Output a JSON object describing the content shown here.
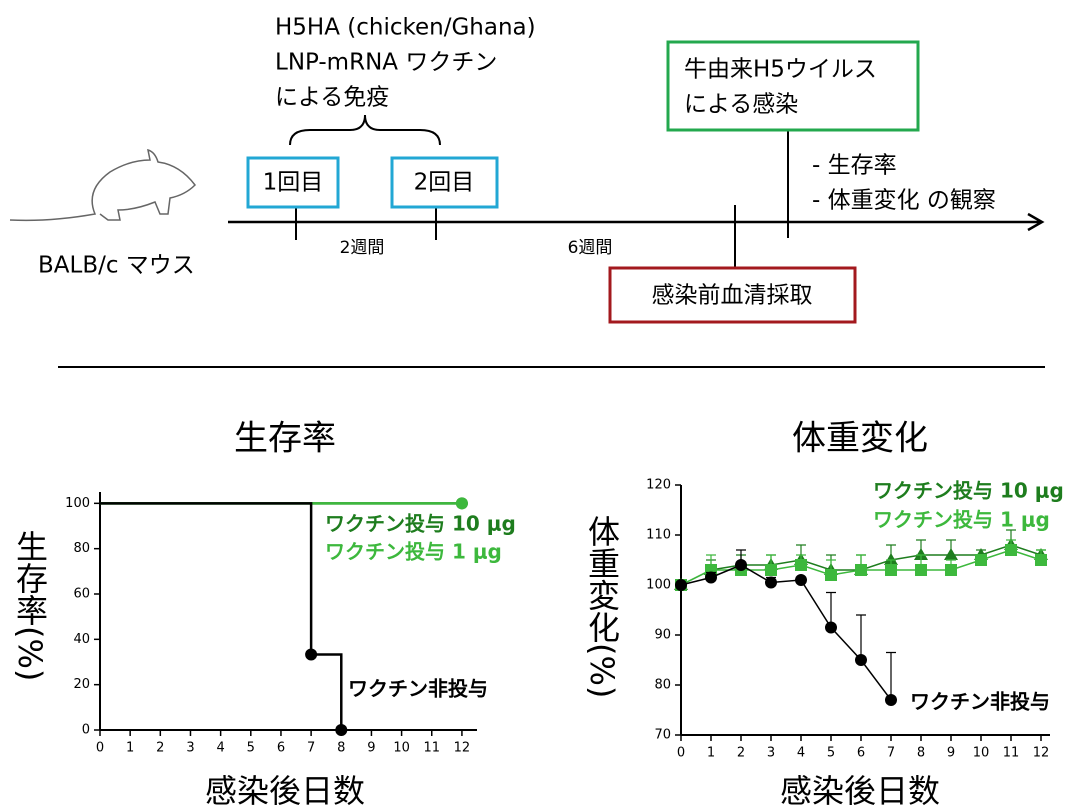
{
  "diagram": {
    "vaccine": [
      "H5HA (chicken/Ghana)",
      "LNP-mRNA ワクチン",
      "による免疫"
    ],
    "dose1": "1回目",
    "dose2": "2回目",
    "infection": [
      "牛由来H5ウイルス",
      "による感染"
    ],
    "observation": [
      "- 生存率",
      "- 体重変化 の観察"
    ],
    "mouse": "BALB/c マウス",
    "interval1": "2週間",
    "interval2": "6週間",
    "serum": "感染前血清採取"
  },
  "chart_data": [
    {
      "type": "step",
      "title": "生存率",
      "x_label": "感染後日数",
      "y_label": "生存率(%)",
      "xlim": [
        0,
        12.5
      ],
      "xticks": [
        0,
        1,
        2,
        3,
        4,
        5,
        6,
        7,
        8,
        9,
        10,
        11,
        12
      ],
      "ylim": [
        0,
        105
      ],
      "yticks": [
        0,
        20,
        40,
        60,
        80,
        100
      ],
      "series": [
        {
          "name": "ワクチン投与 10 μg",
          "color": "#1e7d1e",
          "marker": "circle",
          "x": [
            0,
            12
          ],
          "values": [
            100,
            100
          ]
        },
        {
          "name": "ワクチン投与 1 μg",
          "color": "#3db83d",
          "marker": "circle",
          "x": [
            0,
            12
          ],
          "values": [
            100,
            100
          ]
        },
        {
          "name": "ワクチン非投与",
          "color": "#000000",
          "marker": "circle",
          "x": [
            0,
            7,
            8
          ],
          "values": [
            100,
            33.3,
            0
          ]
        }
      ]
    },
    {
      "type": "line",
      "title": "体重変化",
      "x_label": "感染後日数",
      "y_label": "体重変化(%)",
      "xlim": [
        0,
        12.3
      ],
      "xticks": [
        0,
        1,
        2,
        3,
        4,
        5,
        6,
        7,
        8,
        9,
        10,
        11,
        12
      ],
      "ylim": [
        70,
        120
      ],
      "yticks": [
        70,
        80,
        90,
        100,
        110,
        120
      ],
      "series": [
        {
          "name": "ワクチン投与 10 μg",
          "color": "#1e7d1e",
          "marker": "triangle",
          "x": [
            0,
            1,
            2,
            3,
            4,
            5,
            6,
            7,
            8,
            9,
            10,
            11,
            12
          ],
          "values": [
            100,
            103,
            104,
            104,
            105,
            103,
            103,
            105,
            106,
            106,
            106,
            108,
            106
          ],
          "errors": [
            0,
            2,
            2,
            2,
            3,
            3,
            3,
            3,
            3,
            3,
            1,
            3,
            1
          ]
        },
        {
          "name": "ワクチン投与 1 μg",
          "color": "#3db83d",
          "marker": "square",
          "x": [
            0,
            1,
            2,
            3,
            4,
            5,
            6,
            7,
            8,
            9,
            10,
            11,
            12
          ],
          "values": [
            100,
            103,
            103,
            103,
            104,
            102,
            103,
            103,
            103,
            103,
            105,
            107,
            105
          ],
          "errors": [
            0,
            3,
            1,
            3,
            2,
            3,
            3,
            2,
            3,
            2,
            1,
            2,
            2
          ]
        },
        {
          "name": "ワクチン非投与",
          "color": "#000000",
          "marker": "circle",
          "x": [
            0,
            1,
            2,
            3,
            4,
            5,
            6,
            7
          ],
          "values": [
            100,
            101.5,
            104,
            100.5,
            101,
            91.5,
            85,
            77
          ],
          "errors": [
            0,
            1,
            3,
            1,
            0,
            7,
            9,
            9.5
          ]
        }
      ]
    }
  ]
}
